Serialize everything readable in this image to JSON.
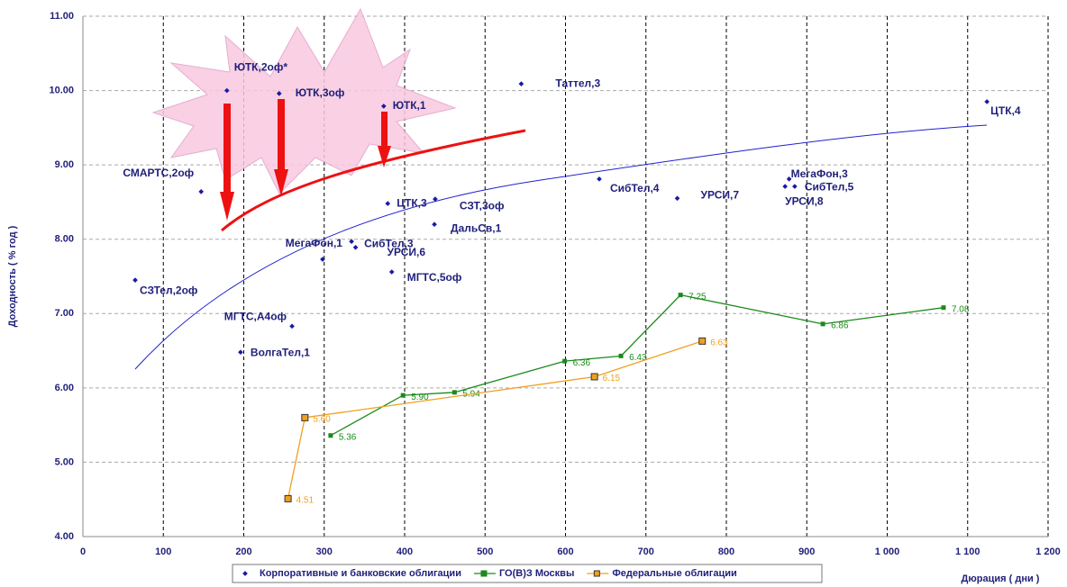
{
  "chart_data": {
    "type": "scatter",
    "x_label": "Дюрация ( дни )",
    "y_label": "Доходность ( % год )",
    "xlim": [
      0,
      1200
    ],
    "ylim": [
      4,
      11
    ],
    "xticks": [
      0,
      100,
      200,
      300,
      400,
      500,
      600,
      700,
      800,
      900,
      {
        "value": 1000,
        "label": "1 000"
      },
      {
        "value": 1100,
        "label": "1 100"
      },
      {
        "value": 1200,
        "label": "1 200"
      }
    ],
    "yticks": [
      {
        "value": 4,
        "label": "4.00"
      },
      {
        "value": 5,
        "label": "5.00"
      },
      {
        "value": 6,
        "label": "6.00"
      },
      {
        "value": 7,
        "label": "7.00"
      },
      {
        "value": 8,
        "label": "8.00"
      },
      {
        "value": 9,
        "label": "9.00"
      },
      {
        "value": 10,
        "label": "10.00"
      },
      {
        "value": 11,
        "label": "11.00"
      }
    ],
    "grid": true,
    "legend": "bottom",
    "series": [
      {
        "name": "Корпоративные и банковские облигации",
        "color": "#1a1aa8",
        "mode": "points",
        "labels": [
          "ЮТК,2оф*",
          "ЮТК,3оф",
          "ЮТК,1",
          "Таттел,3",
          "ЦТК,4",
          "СМАРТС,2оф",
          "ЦТК,3",
          "СЗТ,3оф",
          "ДальСв,1",
          "СибТел,4",
          "УРСИ,7",
          "МегаФон,3",
          "СибТел,5",
          "УРСИ,8",
          "МегаФон,1",
          "СибТел,3",
          "УРСИ,6",
          "МГТС,5оф",
          "СЗТел,2оф",
          "МГТС,А4оф",
          "ВолгаТел,1"
        ],
        "x": [
          179,
          244,
          374,
          545,
          1124,
          147,
          379,
          438,
          437,
          642,
          739,
          878,
          885,
          873,
          298,
          334,
          339,
          384,
          65,
          260,
          196
        ],
        "values": [
          10.0,
          9.96,
          9.79,
          10.09,
          9.85,
          8.64,
          8.48,
          8.54,
          8.2,
          8.81,
          8.55,
          8.81,
          8.71,
          8.71,
          7.73,
          7.97,
          7.89,
          7.56,
          7.45,
          6.83,
          6.48
        ]
      },
      {
        "name": "ГО(В)З Москвы",
        "color": "#1a8a1a",
        "mode": "line",
        "x": [
          308,
          398,
          462,
          599,
          669,
          743,
          920,
          1070
        ],
        "values": [
          5.36,
          5.9,
          5.94,
          6.36,
          6.43,
          7.25,
          6.86,
          7.08
        ],
        "value_labels": [
          "5.36",
          "5.90",
          "5.94",
          "6.36",
          "6.43",
          "7.25",
          "6.86",
          "7.08"
        ]
      },
      {
        "name": "Федеральные облигации",
        "color": "#f0a020",
        "mode": "line",
        "x": [
          255,
          276,
          636,
          770
        ],
        "values": [
          4.51,
          5.6,
          6.15,
          6.63
        ],
        "value_labels": [
          "4.51",
          "5.60",
          "6.15",
          "6.63"
        ]
      }
    ]
  }
}
